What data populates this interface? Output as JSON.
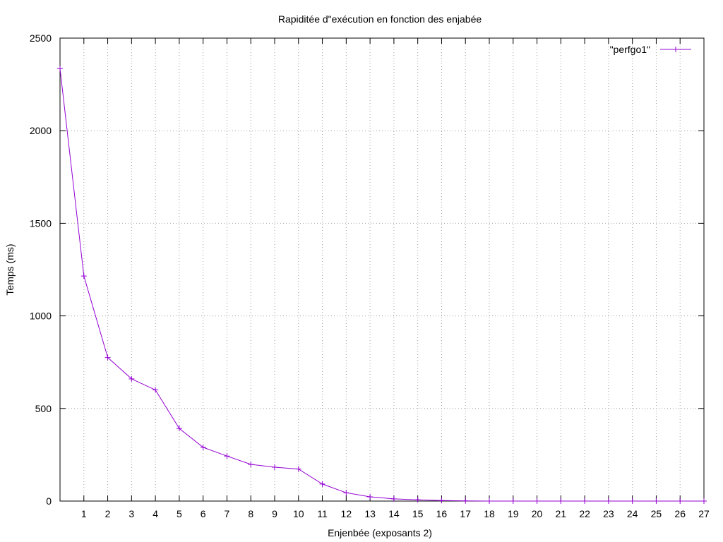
{
  "chart_data": {
    "type": "line",
    "title": "Rapiditée d\"exécution en fonction des enjabée",
    "xlabel": "Enjenbée (exposants 2)",
    "ylabel": "Temps (ms)",
    "xlim": [
      0,
      27
    ],
    "ylim": [
      0,
      2500
    ],
    "xticks": [
      1,
      2,
      3,
      4,
      5,
      6,
      7,
      8,
      9,
      10,
      11,
      12,
      13,
      14,
      15,
      16,
      17,
      18,
      19,
      20,
      21,
      22,
      23,
      24,
      25,
      26,
      27
    ],
    "yticks": [
      0,
      500,
      1000,
      1500,
      2000,
      2500
    ],
    "grid": true,
    "legend_position": "top-right",
    "series": [
      {
        "name": "\"perfgo1\"",
        "color": "#9400d3",
        "marker": "plus",
        "x": [
          0,
          1,
          2,
          3,
          4,
          5,
          6,
          7,
          8,
          9,
          10,
          11,
          12,
          13,
          14,
          15,
          16,
          17,
          18,
          19,
          20,
          21,
          22,
          23,
          24,
          25,
          26,
          27
        ],
        "y": [
          2335,
          1215,
          775,
          660,
          600,
          392,
          290,
          243,
          198,
          183,
          173,
          92,
          45,
          23,
          12,
          7,
          3,
          1,
          0,
          0,
          0,
          0,
          0,
          0,
          0,
          0,
          0,
          0
        ]
      }
    ]
  }
}
